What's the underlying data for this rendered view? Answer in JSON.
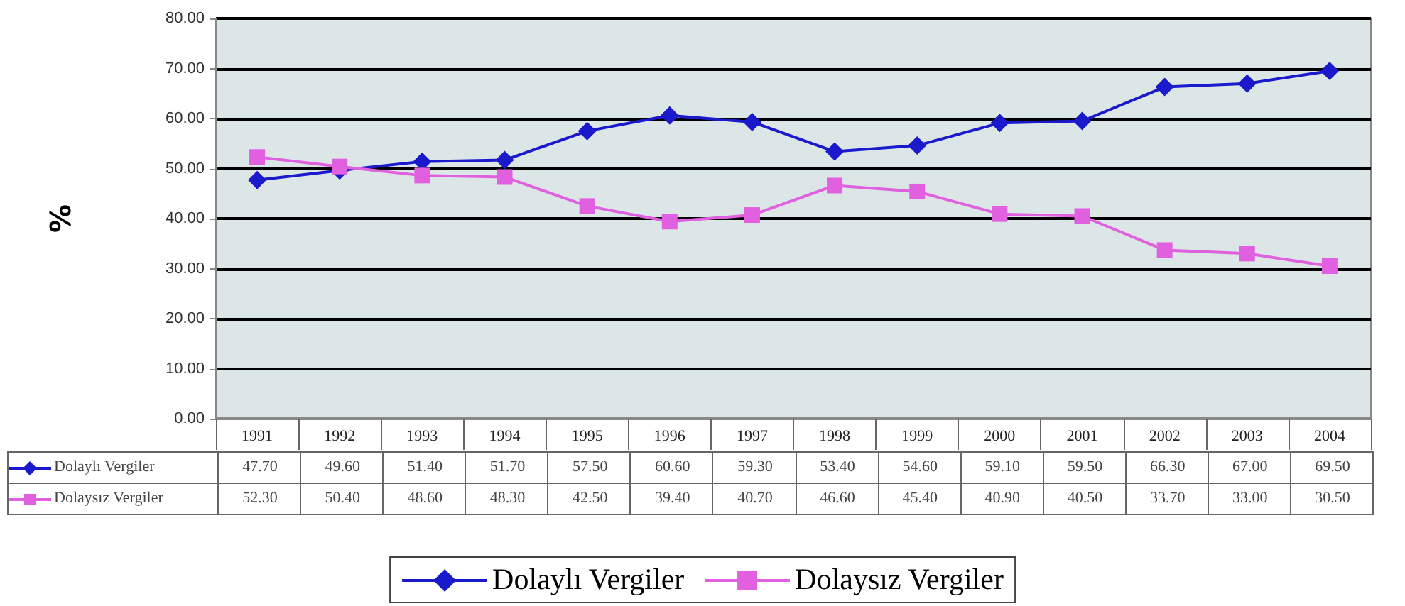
{
  "chart_data": {
    "type": "line",
    "ylabel": "%",
    "categories": [
      "1991",
      "1992",
      "1993",
      "1994",
      "1995",
      "1996",
      "1997",
      "1998",
      "1999",
      "2000",
      "2001",
      "2002",
      "2003",
      "2004"
    ],
    "series": [
      {
        "name": "Dolaylı Vergiler",
        "color": "#1a1acc",
        "marker": "diamond",
        "values": [
          47.7,
          49.6,
          51.4,
          51.7,
          57.5,
          60.6,
          59.3,
          53.4,
          54.6,
          59.1,
          59.5,
          66.3,
          67.0,
          69.5
        ],
        "value_labels": [
          "47.70",
          "49.60",
          "51.40",
          "51.70",
          "57.50",
          "60.60",
          "59.30",
          "53.40",
          "54.60",
          "59.10",
          "59.50",
          "66.30",
          "67.00",
          "69.50"
        ]
      },
      {
        "name": "Dolaysız Vergiler",
        "color": "#e060e0",
        "marker": "square",
        "values": [
          52.3,
          50.4,
          48.6,
          48.3,
          42.5,
          39.4,
          40.7,
          46.6,
          45.4,
          40.9,
          40.5,
          33.7,
          33.0,
          30.5
        ],
        "value_labels": [
          "52.30",
          "50.40",
          "48.60",
          "48.30",
          "42.50",
          "39.40",
          "40.70",
          "46.60",
          "45.40",
          "40.90",
          "40.50",
          "33.70",
          "33.00",
          "30.50"
        ]
      }
    ],
    "ylim": [
      0,
      80
    ],
    "yticks": [
      {
        "value": 0,
        "label": "0.00"
      },
      {
        "value": 10,
        "label": "10.00"
      },
      {
        "value": 20,
        "label": "20.00"
      },
      {
        "value": 30,
        "label": "30.00"
      },
      {
        "value": 40,
        "label": "40.00"
      },
      {
        "value": 50,
        "label": "50.00"
      },
      {
        "value": 60,
        "label": "60.00"
      },
      {
        "value": 70,
        "label": "70.00"
      },
      {
        "value": 80,
        "label": "80.00"
      }
    ],
    "grid": "y",
    "legend": "bottom"
  }
}
